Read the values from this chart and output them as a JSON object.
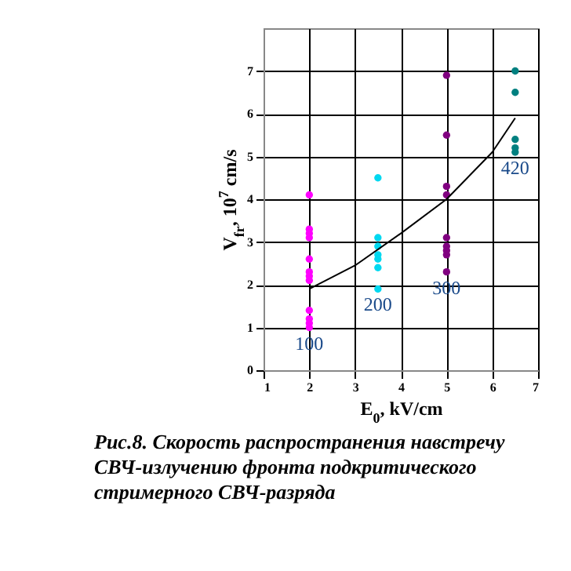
{
  "chart_data": {
    "type": "scatter",
    "xlabel": "E$_{0}$, kV/cm",
    "ylabel": "V$_{fr}$, 10$^{7}$ cm/s",
    "xlim": [
      1,
      7
    ],
    "xticks": [
      1,
      2,
      3,
      4,
      5,
      6,
      7
    ],
    "ylim": [
      0,
      8
    ],
    "yticks": [
      0,
      1,
      2,
      3,
      4,
      5,
      6,
      7
    ],
    "grid": true,
    "marker": "circle",
    "series": [
      {
        "color": "#ff00ff",
        "x": [
          2,
          2,
          2,
          2,
          2,
          2,
          2,
          2,
          2,
          2,
          2,
          2
        ],
        "values": [
          4.1,
          3.3,
          3.2,
          3.1,
          2.6,
          2.3,
          2.2,
          2.1,
          1.4,
          1.2,
          1.1,
          1.0
        ]
      },
      {
        "color": "#00d8f0",
        "x": [
          3.5,
          3.5,
          3.5,
          3.5,
          3.5,
          3.5,
          3.5
        ],
        "values": [
          4.5,
          3.1,
          2.9,
          2.7,
          2.6,
          2.4,
          1.9
        ]
      },
      {
        "color": "#800080",
        "x": [
          5,
          5,
          5,
          5,
          5,
          5,
          5,
          5,
          5
        ],
        "values": [
          6.9,
          5.5,
          4.3,
          4.1,
          3.1,
          2.9,
          2.8,
          2.7,
          2.3
        ]
      },
      {
        "color": "#008080",
        "x": [
          6.5,
          6.5,
          6.5,
          6.5,
          6.5
        ],
        "values": [
          7.0,
          6.5,
          5.4,
          5.2,
          5.1
        ]
      },
      {
        "type": "line",
        "color": "#000000",
        "marker": "none",
        "x": [
          2,
          3,
          4,
          5,
          6,
          6.5
        ],
        "values": [
          1.9,
          2.45,
          3.2,
          4.0,
          5.1,
          5.9
        ]
      }
    ],
    "annotations": [
      {
        "text": "100",
        "x": 2,
        "y": 1.0
      },
      {
        "text": "200",
        "x": 3.5,
        "y": 1.9
      },
      {
        "text": "300",
        "x": 5,
        "y": 2.3
      },
      {
        "text": "420",
        "x": 6.5,
        "y": 5.1
      },
      "Рис.8. Скорость распространения навстречу СВЧ-излучению фронта подкритического стримерного СВЧ-разряда"
    ]
  }
}
